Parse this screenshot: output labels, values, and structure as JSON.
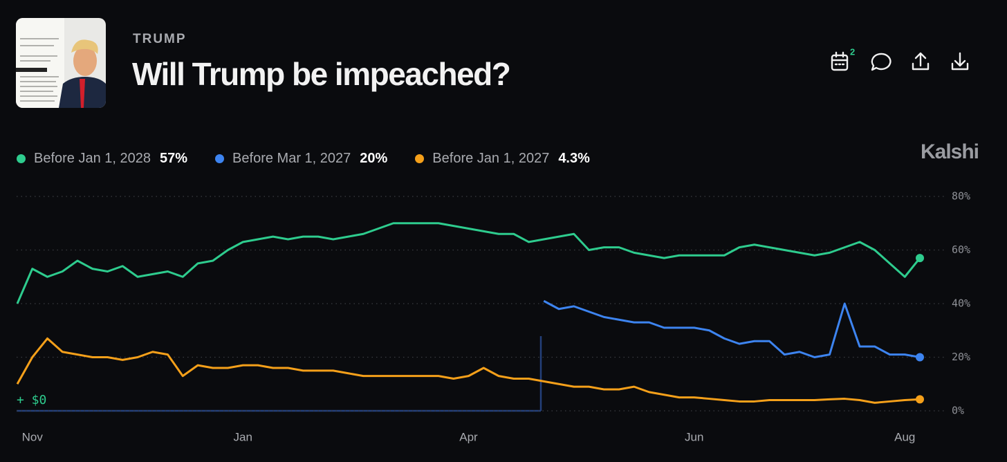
{
  "header": {
    "category": "TRUMP",
    "title": "Will Trump be impeached?",
    "brand": "Kalshi",
    "calendar_badge": "2"
  },
  "chart_data": {
    "type": "line",
    "categories": [
      null,
      "Nov",
      null,
      null,
      null,
      null,
      null,
      null,
      null,
      null,
      null,
      null,
      null,
      null,
      null,
      "Jan",
      null,
      null,
      null,
      null,
      null,
      null,
      null,
      null,
      null,
      null,
      null,
      null,
      null,
      null,
      "Apr",
      null,
      null,
      null,
      null,
      null,
      null,
      null,
      null,
      null,
      null,
      null,
      null,
      null,
      null,
      "Jun",
      null,
      null,
      null,
      null,
      null,
      null,
      null,
      null,
      null,
      null,
      null,
      null,
      null,
      "Aug",
      null
    ],
    "series": [
      {
        "name": "Before Jan 1, 2028",
        "color": "#2ecc8e",
        "values": [
          40,
          53,
          50,
          52,
          56,
          53,
          52,
          54,
          50,
          51,
          52,
          50,
          55,
          56,
          60,
          63,
          64,
          65,
          64,
          65,
          65,
          64,
          65,
          66,
          68,
          70,
          70,
          70,
          70,
          69,
          68,
          67,
          66,
          66,
          63,
          64,
          65,
          66,
          60,
          61,
          61,
          59,
          58,
          57,
          58,
          58,
          58,
          58,
          61,
          62,
          61,
          60,
          59,
          58,
          59,
          61,
          63,
          60,
          55,
          50,
          57
        ],
        "value_labels": [
          null,
          null,
          null,
          null,
          null,
          null,
          null,
          null,
          null,
          null,
          null,
          null,
          null,
          null,
          null,
          null,
          null,
          null,
          null,
          null,
          null,
          null,
          null,
          null,
          null,
          null,
          null,
          null,
          null,
          null,
          null,
          null,
          null,
          null,
          null,
          null,
          null,
          null,
          null,
          null,
          null,
          null,
          null,
          null,
          null,
          null,
          null,
          null,
          null,
          null,
          null,
          null,
          null,
          null,
          null,
          null,
          null,
          null,
          null,
          null,
          "57%"
        ]
      },
      {
        "name": "Before Mar 1, 2027",
        "color": "#3d84f0",
        "values": [
          null,
          null,
          null,
          null,
          null,
          null,
          null,
          null,
          null,
          null,
          null,
          null,
          null,
          null,
          null,
          null,
          null,
          null,
          null,
          null,
          null,
          null,
          null,
          null,
          null,
          null,
          null,
          null,
          null,
          null,
          null,
          null,
          null,
          null,
          null,
          41,
          38,
          39,
          37,
          35,
          34,
          33,
          33,
          31,
          31,
          31,
          30,
          27,
          25,
          26,
          26,
          21,
          22,
          20,
          21,
          40,
          24,
          24,
          21,
          21,
          20
        ],
        "value_labels": [
          null,
          null,
          null,
          null,
          null,
          null,
          null,
          null,
          null,
          null,
          null,
          null,
          null,
          null,
          null,
          null,
          null,
          null,
          null,
          null,
          null,
          null,
          null,
          null,
          null,
          null,
          null,
          null,
          null,
          null,
          null,
          null,
          null,
          null,
          null,
          null,
          null,
          null,
          null,
          null,
          null,
          null,
          null,
          null,
          null,
          null,
          null,
          null,
          null,
          null,
          null,
          null,
          null,
          null,
          null,
          null,
          null,
          null,
          null,
          null,
          "20%"
        ]
      },
      {
        "name": "Before Jan 1, 2027",
        "color": "#f5a01a",
        "values": [
          10,
          20,
          27,
          22,
          21,
          20,
          20,
          19,
          20,
          22,
          21,
          13,
          17,
          16,
          16,
          17,
          17,
          16,
          16,
          15,
          15,
          15,
          14,
          13,
          13,
          13,
          13,
          13,
          13,
          12,
          13,
          16,
          13,
          12,
          12,
          11,
          10,
          9,
          9,
          8,
          8,
          9,
          7,
          6,
          5,
          5,
          4.5,
          4,
          3.5,
          3.5,
          4,
          4,
          4,
          4,
          4.3,
          4.5,
          4,
          3,
          3.5,
          4,
          4.3
        ],
        "value_labels": [
          null,
          null,
          null,
          null,
          null,
          null,
          null,
          null,
          null,
          null,
          null,
          null,
          null,
          null,
          null,
          null,
          null,
          null,
          null,
          null,
          null,
          null,
          null,
          null,
          null,
          null,
          null,
          null,
          null,
          null,
          null,
          null,
          null,
          null,
          null,
          null,
          null,
          null,
          null,
          null,
          null,
          null,
          null,
          null,
          null,
          null,
          null,
          null,
          null,
          null,
          null,
          null,
          null,
          null,
          null,
          null,
          null,
          null,
          null,
          null,
          "4.3%"
        ]
      }
    ],
    "ylim": [
      0,
      80
    ],
    "yticks": [
      {
        "value": 0,
        "label": "0%"
      },
      {
        "value": 20,
        "label": "20%"
      },
      {
        "value": 40,
        "label": "40%"
      },
      {
        "value": 60,
        "label": "60%"
      },
      {
        "value": 80,
        "label": "80%"
      }
    ],
    "grid": true,
    "annotation": "+ $0"
  }
}
